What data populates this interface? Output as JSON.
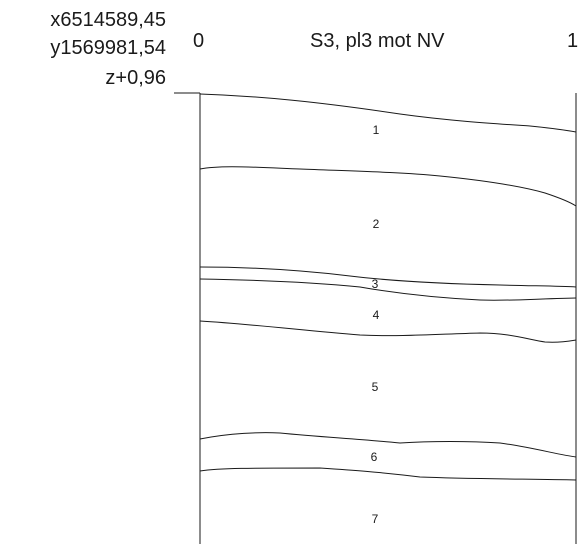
{
  "coordinates": {
    "x": "x6514589,45",
    "y": "y1569981,54",
    "z": "z+0,96"
  },
  "section": {
    "title": "S3, pl3 mot NV",
    "scale_start": "0",
    "scale_end": "1"
  },
  "layers": [
    "1",
    "2",
    "3",
    "4",
    "5",
    "6",
    "7"
  ],
  "colors": {
    "line": "#1a1a1a",
    "background": "#ffffff"
  }
}
